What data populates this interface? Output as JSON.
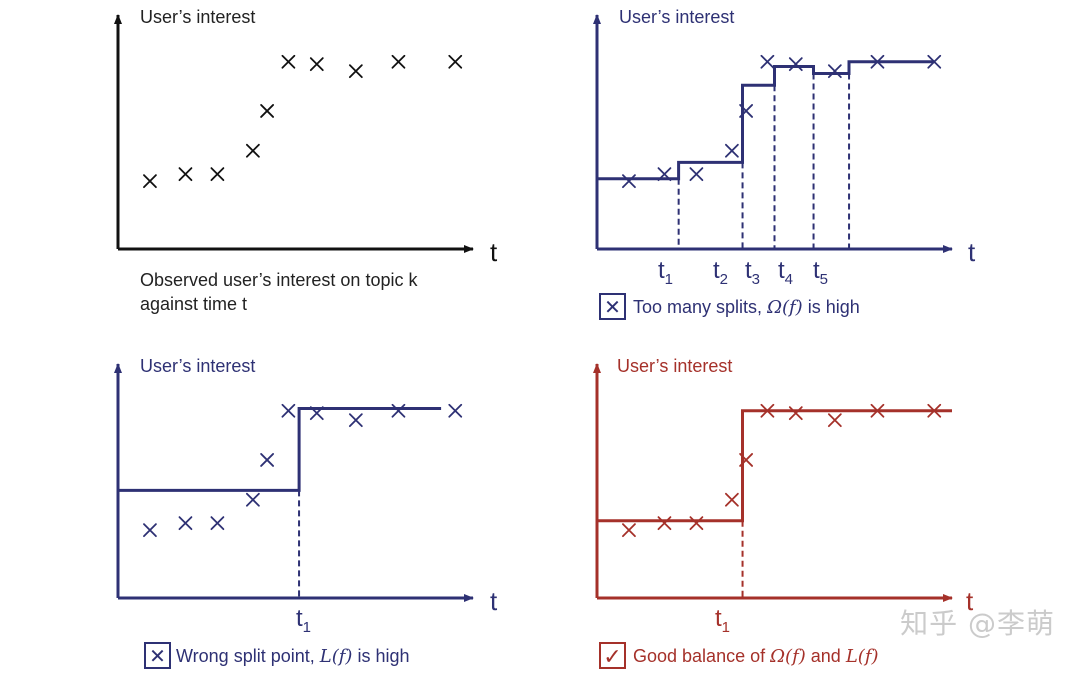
{
  "colors": {
    "black": "#111111",
    "navy": "#2e3174",
    "red": "#a5312a"
  },
  "panels": {
    "top_left": {
      "ylabel": "User’s interest",
      "xlabel": "t",
      "caption_line1": "Observed user’s interest on topic k",
      "caption_line2": "against time t"
    },
    "top_right": {
      "ylabel": "User’s interest",
      "xlabel": "t",
      "mark_t1": "1",
      "mark_t2": "2",
      "mark_t3": "3",
      "mark_t4": "4",
      "mark_t5": "5",
      "caption_pre": "Too many splits,",
      "caption_omega": "Ω(f)",
      "caption_post": "is high",
      "caption_icon": "✕"
    },
    "bottom_left": {
      "ylabel": "User’s interest",
      "xlabel": "t",
      "mark_t1": "1",
      "caption_pre": "Wrong split point,",
      "caption_loss": "L(f)",
      "caption_post": "is high",
      "caption_icon": "✕"
    },
    "bottom_right": {
      "ylabel": "User’s interest",
      "xlabel": "t",
      "mark_t1": "1",
      "caption_pre": "Good balance of",
      "caption_omega": "Ω(f)",
      "caption_mid": "and",
      "caption_loss": "L(f)",
      "caption_icon": "✓"
    }
  },
  "tick_letter": "t",
  "watermark": "知乎 @李萌",
  "chart_data": [
    {
      "type": "scatter",
      "title": "Observed user’s interest on topic k against time t",
      "xlabel": "t",
      "ylabel": "User’s interest",
      "xlim": [
        0,
        100
      ],
      "ylim": [
        0,
        100
      ],
      "x": [
        9,
        19,
        28,
        38,
        42,
        48,
        56,
        67,
        79,
        95
      ],
      "y": [
        29,
        32,
        32,
        42,
        59,
        80,
        79,
        76,
        80,
        80
      ]
    },
    {
      "type": "line",
      "title": "Too many splits",
      "xlabel": "t",
      "ylabel": "User’s interest",
      "xlim": [
        0,
        100
      ],
      "ylim": [
        0,
        100
      ],
      "x": [
        9,
        19,
        28,
        38,
        42,
        48,
        56,
        67,
        79,
        95
      ],
      "y": [
        29,
        32,
        32,
        42,
        59,
        80,
        79,
        76,
        80,
        80
      ],
      "splits": [
        23,
        41,
        50,
        61,
        71
      ],
      "steps": [
        [
          0,
          23,
          30
        ],
        [
          23,
          41,
          37
        ],
        [
          41,
          50,
          70
        ],
        [
          50,
          61,
          78
        ],
        [
          61,
          71,
          75
        ],
        [
          71,
          95,
          80
        ]
      ]
    },
    {
      "type": "line",
      "title": "Wrong split point",
      "xlabel": "t",
      "ylabel": "User’s interest",
      "xlim": [
        0,
        100
      ],
      "ylim": [
        0,
        100
      ],
      "x": [
        9,
        19,
        28,
        38,
        42,
        48,
        56,
        67,
        79,
        95
      ],
      "y": [
        29,
        32,
        32,
        42,
        59,
        80,
        79,
        76,
        80,
        80
      ],
      "splits": [
        51
      ],
      "steps": [
        [
          0,
          51,
          46
        ],
        [
          51,
          91,
          81
        ]
      ]
    },
    {
      "type": "line",
      "title": "Good balance",
      "xlabel": "t",
      "ylabel": "User’s interest",
      "xlim": [
        0,
        100
      ],
      "ylim": [
        0,
        100
      ],
      "x": [
        9,
        19,
        28,
        38,
        42,
        48,
        56,
        67,
        79,
        95
      ],
      "y": [
        29,
        32,
        32,
        42,
        59,
        80,
        79,
        76,
        80,
        80
      ],
      "splits": [
        41
      ],
      "steps": [
        [
          0,
          41,
          33
        ],
        [
          41,
          100,
          80
        ]
      ]
    }
  ]
}
